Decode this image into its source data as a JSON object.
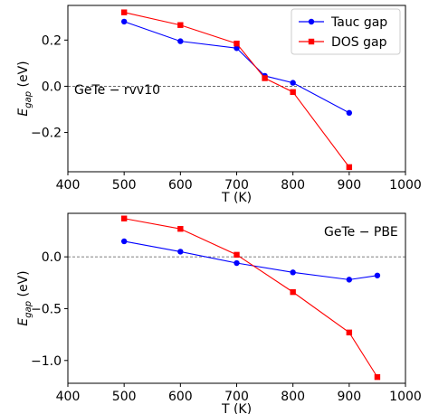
{
  "chart_data": [
    {
      "type": "line",
      "annotation": "GeTe − rvv10",
      "xlabel": "T (K)",
      "ylabel_main": "E",
      "ylabel_sub": "gap",
      "ylabel_unit": " (eV)",
      "xlim": [
        400,
        1000
      ],
      "ylim": [
        -0.37,
        0.35
      ],
      "xticks": [
        400,
        500,
        600,
        700,
        800,
        900,
        1000
      ],
      "xtick_labels": [
        "400",
        "500",
        "600",
        "700",
        "800",
        "900",
        "1000"
      ],
      "yticks": [
        -0.2,
        0.0,
        0.2
      ],
      "ytick_labels": [
        "−0.2",
        "0.0",
        "0.2"
      ],
      "reference_line_y": 0.0,
      "legend": "top-right",
      "series": [
        {
          "name": "Tauc gap",
          "color": "#0000ff",
          "marker": "circle",
          "x": [
            500,
            600,
            700,
            750,
            800,
            900
          ],
          "y": [
            0.28,
            0.195,
            0.165,
            0.045,
            0.015,
            -0.115
          ]
        },
        {
          "name": "DOS gap",
          "color": "#ff0000",
          "marker": "square",
          "x": [
            500,
            600,
            700,
            750,
            800,
            900
          ],
          "y": [
            0.32,
            0.265,
            0.185,
            0.035,
            -0.025,
            -0.35
          ]
        }
      ]
    },
    {
      "type": "line",
      "annotation": "GeTe − PBE",
      "xlabel": "T (K)",
      "ylabel_main": "E",
      "ylabel_sub": "gap",
      "ylabel_unit": " (eV)",
      "xlim": [
        400,
        1000
      ],
      "ylim": [
        -1.22,
        0.42
      ],
      "xticks": [
        400,
        500,
        600,
        700,
        800,
        900,
        1000
      ],
      "xtick_labels": [
        "400",
        "500",
        "600",
        "700",
        "800",
        "900",
        "1000"
      ],
      "yticks": [
        -1.0,
        -0.5,
        0.0
      ],
      "ytick_labels": [
        "−1.0",
        "−0.5",
        "0.0"
      ],
      "reference_line_y": 0.0,
      "series": [
        {
          "name": "Tauc gap",
          "color": "#0000ff",
          "marker": "circle",
          "x": [
            500,
            600,
            700,
            800,
            900,
            950
          ],
          "y": [
            0.15,
            0.05,
            -0.06,
            -0.15,
            -0.22,
            -0.18
          ]
        },
        {
          "name": "DOS gap",
          "color": "#ff0000",
          "marker": "square",
          "x": [
            500,
            600,
            700,
            800,
            900,
            950
          ],
          "y": [
            0.37,
            0.27,
            0.02,
            -0.34,
            -0.73,
            -1.16
          ]
        }
      ]
    }
  ]
}
